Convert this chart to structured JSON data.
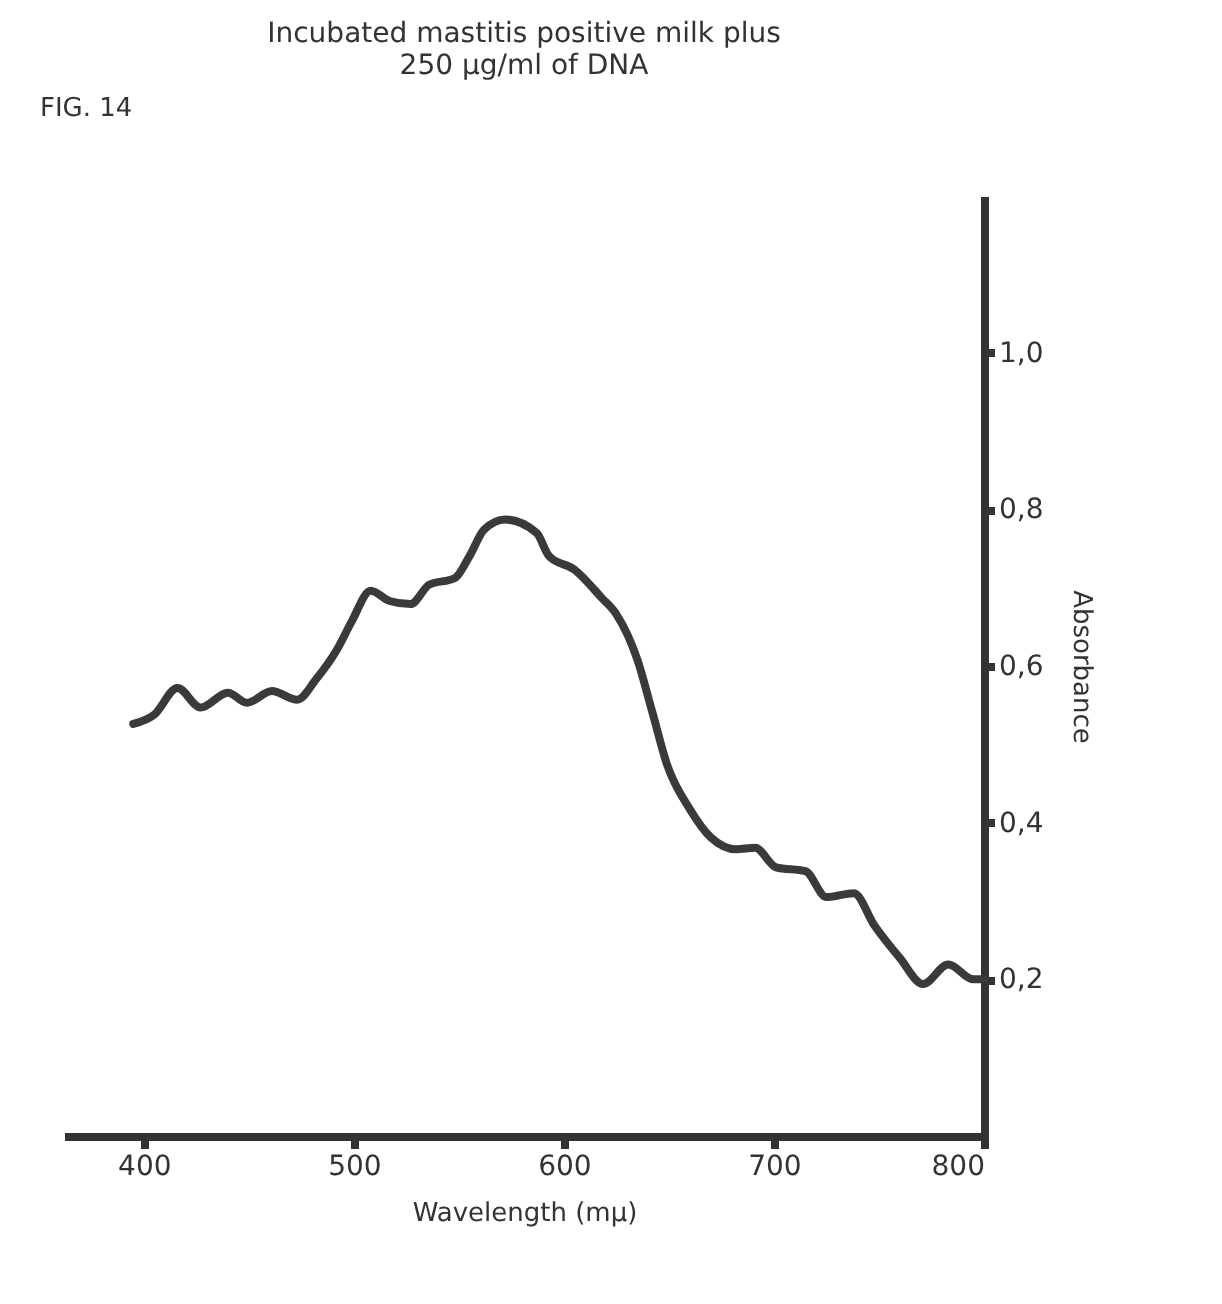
{
  "chart_data": {
    "type": "line",
    "title": "Incubated mastitis positive milk plus\n250 µg/ml of DNA",
    "xlabel": "Wavelength (mµ)",
    "ylabel": "Absorbance",
    "annotations": [
      "FIG. 14"
    ],
    "x": [
      395,
      405,
      416,
      427,
      440,
      449,
      461,
      473,
      482,
      492,
      499,
      508,
      517,
      527,
      536,
      548,
      555,
      562,
      572,
      587,
      593,
      605,
      618,
      625,
      635,
      642,
      649,
      660,
      670,
      682,
      691,
      701,
      715,
      725,
      738,
      748,
      760,
      771,
      783,
      795,
      800
    ],
    "series": [
      {
        "color": "#3a3a3a",
        "values": [
          0.526,
          0.538,
          0.572,
          0.547,
          0.566,
          0.553,
          0.568,
          0.557,
          0.583,
          0.621,
          0.657,
          0.696,
          0.683,
          0.679,
          0.704,
          0.712,
          0.74,
          0.774,
          0.787,
          0.77,
          0.74,
          0.723,
          0.687,
          0.666,
          0.608,
          0.542,
          0.475,
          0.417,
          0.381,
          0.366,
          0.368,
          0.343,
          0.338,
          0.305,
          0.31,
          0.268,
          0.227,
          0.194,
          0.219,
          0.2,
          0.2
        ]
      }
    ],
    "xlim": [
      362,
      800
    ],
    "ylim": [
      0,
      1.2
    ],
    "xticks": [
      400,
      500,
      600,
      700,
      800
    ],
    "yticks": [
      {
        "value": 0.2,
        "label": "0,2"
      },
      {
        "value": 0.4,
        "label": "0,4"
      },
      {
        "value": 0.6,
        "label": "0,6"
      },
      {
        "value": 0.8,
        "label": "0,8"
      },
      {
        "value": 1.0,
        "label": "1,0"
      }
    ],
    "grid": false,
    "legend": false,
    "marker": "none",
    "line_style": "solid"
  }
}
